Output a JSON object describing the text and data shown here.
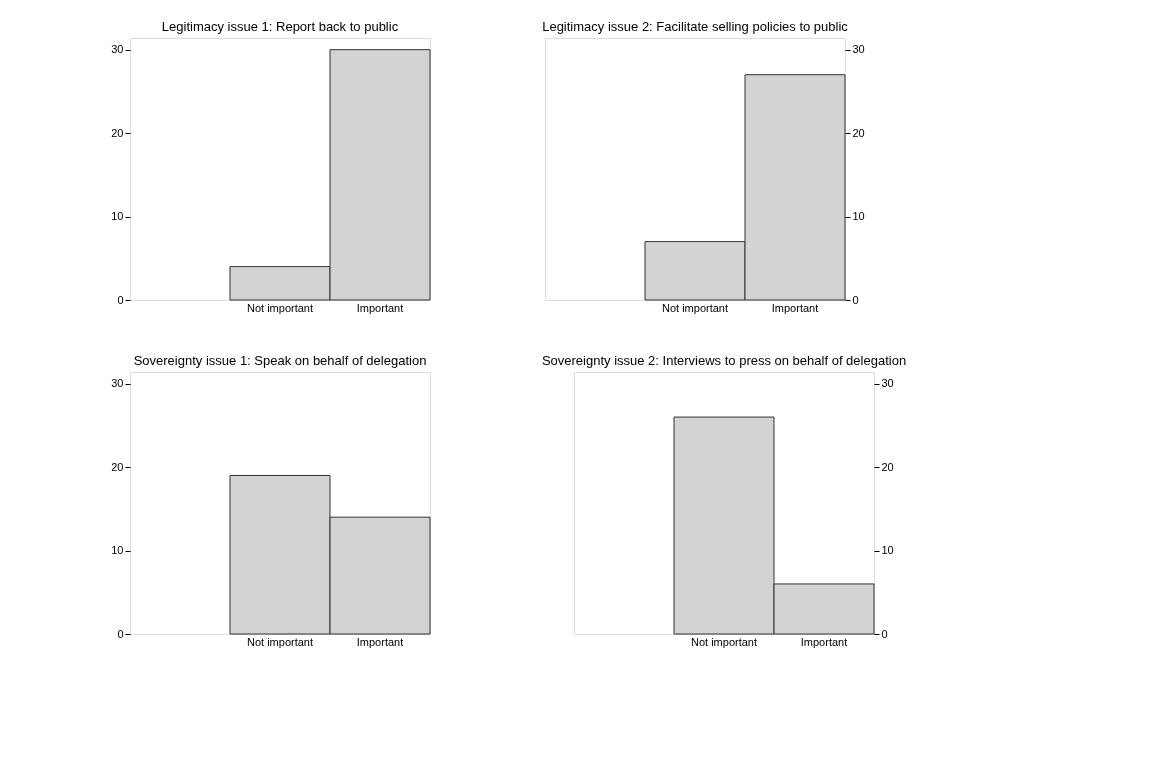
{
  "chart_data": [
    {
      "type": "bar",
      "title": "Legitimacy issue 1: Report back to public",
      "categories": [
        null,
        "Not important",
        "Important"
      ],
      "values": [
        null,
        4,
        30
      ],
      "color": "#d3d3d3",
      "ylim": [
        0,
        31.4
      ],
      "yticks": [
        0,
        10,
        20,
        30
      ],
      "grid": false
    },
    {
      "type": "bar",
      "title": "Legitimacy issue 2: Facilitate selling policies to public",
      "categories": [
        null,
        "Not important",
        "Important"
      ],
      "values": [
        null,
        7,
        27
      ],
      "color": "#d3d3d3",
      "ylim": [
        0,
        31.4
      ],
      "yticks": [
        0,
        10,
        20,
        30
      ],
      "grid": false
    },
    {
      "type": "bar",
      "title": "Sovereignty issue 1: Speak on behalf of delegation",
      "categories": [
        null,
        "Not important",
        "Important"
      ],
      "values": [
        null,
        19,
        14
      ],
      "color": "#d3d3d3",
      "ylim": [
        0,
        31.4
      ],
      "yticks": [
        0,
        10,
        20,
        30
      ],
      "grid": false
    },
    {
      "type": "bar",
      "title": "Sovereignty issue 2: Interviews to press on behalf of delegation",
      "categories": [
        null,
        "Not important",
        "Important"
      ],
      "values": [
        null,
        26,
        6
      ],
      "color": "#d3d3d3",
      "ylim": [
        0,
        31.4
      ],
      "yticks": [
        0,
        10,
        20,
        30
      ],
      "grid": false
    }
  ]
}
